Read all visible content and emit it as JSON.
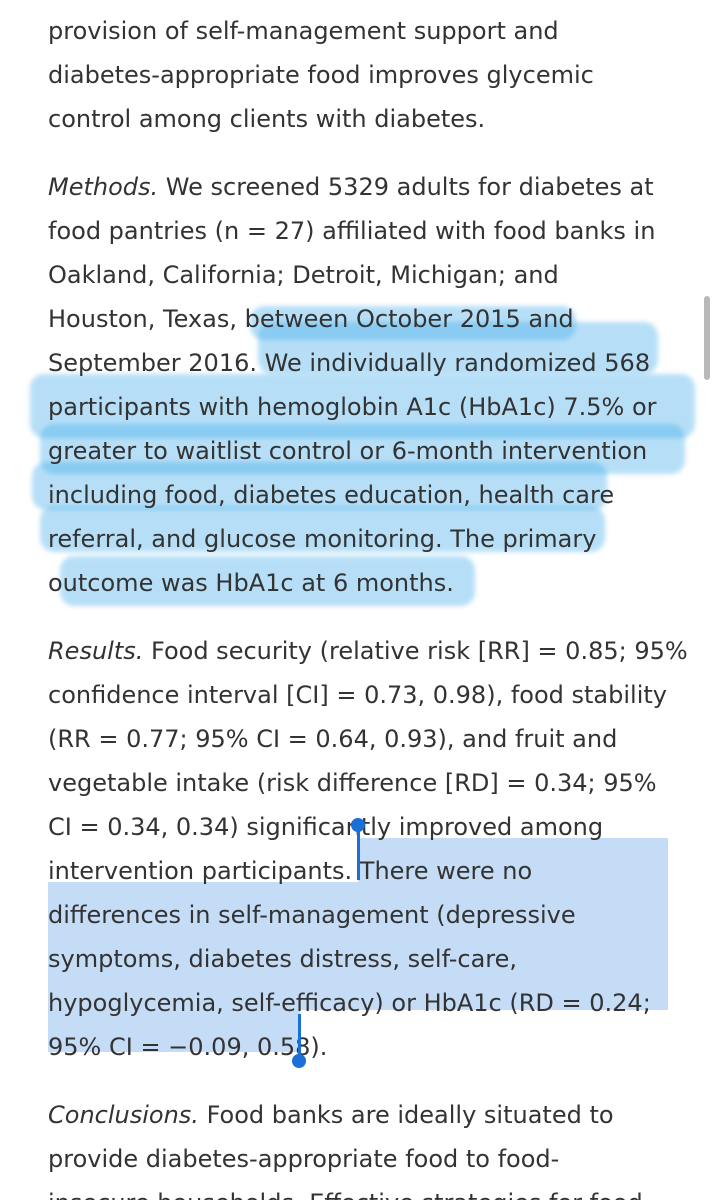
{
  "abstract": {
    "intro_lines": [
      "provision of self-management support and",
      "diabetes-appropriate food improves glycemic",
      "control among clients with diabetes."
    ],
    "methods": {
      "label": "Methods.",
      "lines": [
        " We screened 5329 adults for diabetes at",
        "food pantries (n = 27) affiliated with food banks in",
        "Oakland, California; Detroit, Michigan; and",
        "Houston, Texas, between October 2015 and",
        "September 2016. We individually randomized 568",
        "participants with hemoglobin A1c (HbA1c) 7.5% or",
        "greater to waitlist control or 6-month intervention",
        "including food, diabetes education, health care",
        "referral, and glucose monitoring. The primary",
        "outcome was HbA1c at 6 months."
      ]
    },
    "results": {
      "label": "Results.",
      "lines": [
        " Food security (relative risk [RR] = 0.85; 95%",
        "confidence interval [CI] = 0.73, 0.98), food stability",
        "(RR = 0.77; 95% CI = 0.64, 0.93), and fruit and",
        "vegetable intake (risk difference [RD] = 0.34; 95%",
        "CI = 0.34, 0.34) significantly improved among",
        "intervention participants. There were no",
        "differences in self-management (depressive",
        "symptoms, diabetes distress, self-care,",
        "hypoglycemia, self-efficacy) or HbA1c (RD = 0.24;",
        "95% CI = −0.09, 0.58)."
      ]
    },
    "conclusions": {
      "label": "Conclusions.",
      "lines": [
        " Food banks are ideally situated to",
        "provide diabetes-appropriate food to food-",
        "insecure households. Effective strategies for food"
      ]
    }
  }
}
